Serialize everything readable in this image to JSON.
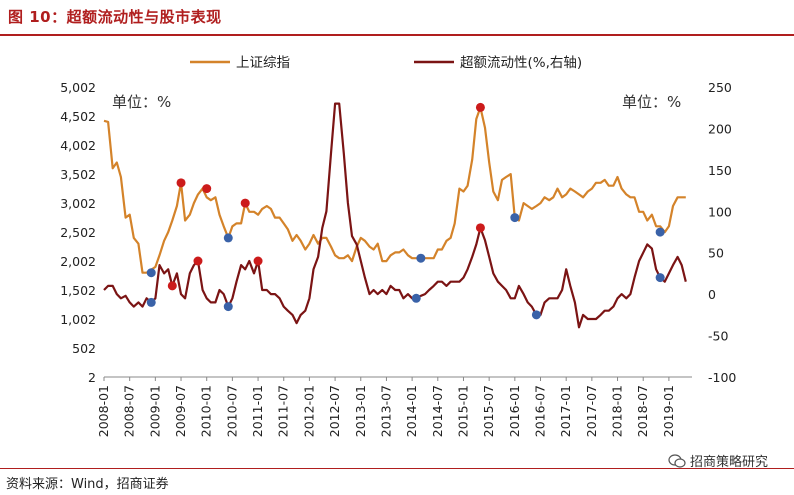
{
  "figure": {
    "title": "图 10：超额流动性与股市表现",
    "source": "资料来源：Wind，招商证券",
    "watermark": "招商策略研究"
  },
  "chart_data": {
    "type": "line",
    "legend": [
      "上证综指",
      "超额流动性(%,右轴)"
    ],
    "left_unit": "单位：%",
    "right_unit": "单位：%",
    "left_axis": {
      "ticks": [
        "5,002",
        "4,502",
        "4,002",
        "3,502",
        "3,002",
        "2,502",
        "2,002",
        "1,502",
        "1,002",
        "502",
        "2"
      ],
      "ylim": [
        2,
        5002
      ]
    },
    "right_axis": {
      "ticks": [
        "250",
        "200",
        "150",
        "100",
        "50",
        "0",
        "-50",
        "-100"
      ],
      "ylim": [
        -100,
        250
      ]
    },
    "x_ticks": [
      "2008-01",
      "2008-07",
      "2009-01",
      "2009-07",
      "2010-01",
      "2010-07",
      "2011-01",
      "2011-07",
      "2012-01",
      "2012-07",
      "2013-01",
      "2013-07",
      "2014-01",
      "2014-07",
      "2015-01",
      "2015-07",
      "2016-01",
      "2016-07",
      "2017-01",
      "2017-07",
      "2018-01",
      "2018-07",
      "2019-01"
    ],
    "series": [
      {
        "name": "上证综指",
        "color": "#d4832a",
        "axis": "left",
        "values": [
          [
            2008.0,
            4420
          ],
          [
            2008.08,
            4400
          ],
          [
            2008.17,
            3600
          ],
          [
            2008.25,
            3700
          ],
          [
            2008.33,
            3450
          ],
          [
            2008.42,
            2750
          ],
          [
            2008.5,
            2800
          ],
          [
            2008.58,
            2400
          ],
          [
            2008.67,
            2300
          ],
          [
            2008.75,
            1800
          ],
          [
            2008.83,
            1800
          ],
          [
            2008.92,
            1850
          ],
          [
            2009.0,
            1900
          ],
          [
            2009.08,
            2100
          ],
          [
            2009.17,
            2350
          ],
          [
            2009.25,
            2500
          ],
          [
            2009.33,
            2700
          ],
          [
            2009.42,
            2950
          ],
          [
            2009.5,
            3350
          ],
          [
            2009.58,
            2700
          ],
          [
            2009.67,
            2800
          ],
          [
            2009.75,
            3000
          ],
          [
            2009.83,
            3150
          ],
          [
            2009.92,
            3250
          ],
          [
            2010.0,
            3100
          ],
          [
            2010.08,
            3050
          ],
          [
            2010.17,
            3100
          ],
          [
            2010.25,
            2800
          ],
          [
            2010.33,
            2600
          ],
          [
            2010.42,
            2400
          ],
          [
            2010.5,
            2600
          ],
          [
            2010.58,
            2650
          ],
          [
            2010.67,
            2650
          ],
          [
            2010.75,
            3000
          ],
          [
            2010.83,
            2850
          ],
          [
            2010.92,
            2850
          ],
          [
            2011.0,
            2800
          ],
          [
            2011.08,
            2900
          ],
          [
            2011.17,
            2950
          ],
          [
            2011.25,
            2900
          ],
          [
            2011.33,
            2750
          ],
          [
            2011.42,
            2750
          ],
          [
            2011.5,
            2650
          ],
          [
            2011.58,
            2550
          ],
          [
            2011.67,
            2350
          ],
          [
            2011.75,
            2450
          ],
          [
            2011.83,
            2350
          ],
          [
            2011.92,
            2200
          ],
          [
            2012.0,
            2300
          ],
          [
            2012.08,
            2450
          ],
          [
            2012.17,
            2300
          ],
          [
            2012.25,
            2400
          ],
          [
            2012.33,
            2400
          ],
          [
            2012.42,
            2250
          ],
          [
            2012.5,
            2100
          ],
          [
            2012.58,
            2050
          ],
          [
            2012.67,
            2050
          ],
          [
            2012.75,
            2100
          ],
          [
            2012.83,
            2000
          ],
          [
            2012.92,
            2250
          ],
          [
            2013.0,
            2400
          ],
          [
            2013.08,
            2350
          ],
          [
            2013.17,
            2250
          ],
          [
            2013.25,
            2200
          ],
          [
            2013.33,
            2300
          ],
          [
            2013.42,
            2000
          ],
          [
            2013.5,
            2000
          ],
          [
            2013.58,
            2100
          ],
          [
            2013.67,
            2150
          ],
          [
            2013.75,
            2150
          ],
          [
            2013.83,
            2200
          ],
          [
            2013.92,
            2100
          ],
          [
            2014.0,
            2050
          ],
          [
            2014.08,
            2050
          ],
          [
            2014.17,
            2050
          ],
          [
            2014.25,
            2050
          ],
          [
            2014.33,
            2050
          ],
          [
            2014.42,
            2050
          ],
          [
            2014.5,
            2200
          ],
          [
            2014.58,
            2200
          ],
          [
            2014.67,
            2350
          ],
          [
            2014.75,
            2400
          ],
          [
            2014.83,
            2650
          ],
          [
            2014.92,
            3250
          ],
          [
            2015.0,
            3200
          ],
          [
            2015.08,
            3300
          ],
          [
            2015.17,
            3750
          ],
          [
            2015.25,
            4450
          ],
          [
            2015.33,
            4650
          ],
          [
            2015.42,
            4300
          ],
          [
            2015.5,
            3700
          ],
          [
            2015.58,
            3200
          ],
          [
            2015.67,
            3050
          ],
          [
            2015.75,
            3400
          ],
          [
            2015.83,
            3450
          ],
          [
            2015.92,
            3500
          ],
          [
            2016.0,
            2750
          ],
          [
            2016.08,
            2700
          ],
          [
            2016.17,
            3000
          ],
          [
            2016.25,
            2950
          ],
          [
            2016.33,
            2900
          ],
          [
            2016.42,
            2950
          ],
          [
            2016.5,
            3000
          ],
          [
            2016.58,
            3100
          ],
          [
            2016.67,
            3050
          ],
          [
            2016.75,
            3100
          ],
          [
            2016.83,
            3250
          ],
          [
            2016.92,
            3100
          ],
          [
            2017.0,
            3150
          ],
          [
            2017.08,
            3250
          ],
          [
            2017.17,
            3200
          ],
          [
            2017.25,
            3150
          ],
          [
            2017.33,
            3100
          ],
          [
            2017.42,
            3200
          ],
          [
            2017.5,
            3250
          ],
          [
            2017.58,
            3350
          ],
          [
            2017.67,
            3350
          ],
          [
            2017.75,
            3400
          ],
          [
            2017.83,
            3300
          ],
          [
            2017.92,
            3300
          ],
          [
            2018.0,
            3450
          ],
          [
            2018.08,
            3250
          ],
          [
            2018.17,
            3150
          ],
          [
            2018.25,
            3100
          ],
          [
            2018.33,
            3100
          ],
          [
            2018.42,
            2850
          ],
          [
            2018.5,
            2850
          ],
          [
            2018.58,
            2700
          ],
          [
            2018.67,
            2800
          ],
          [
            2018.75,
            2600
          ],
          [
            2018.83,
            2600
          ],
          [
            2018.92,
            2500
          ],
          [
            2019.0,
            2600
          ],
          [
            2019.08,
            2950
          ],
          [
            2019.17,
            3100
          ],
          [
            2019.25,
            3100
          ],
          [
            2019.33,
            3100
          ]
        ],
        "markers": [
          {
            "x": 2008.92,
            "y": 1800,
            "color": "#3a62a8"
          },
          {
            "x": 2009.5,
            "y": 3350,
            "color": "#cc1b1b"
          },
          {
            "x": 2010.0,
            "y": 3250,
            "color": "#cc1b1b"
          },
          {
            "x": 2010.42,
            "y": 2400,
            "color": "#3a62a8"
          },
          {
            "x": 2010.75,
            "y": 3000,
            "color": "#cc1b1b"
          },
          {
            "x": 2014.17,
            "y": 2050,
            "color": "#3a62a8"
          },
          {
            "x": 2015.33,
            "y": 4650,
            "color": "#cc1b1b"
          },
          {
            "x": 2016.0,
            "y": 2750,
            "color": "#3a62a8"
          },
          {
            "x": 2018.83,
            "y": 2500,
            "color": "#3a62a8"
          }
        ]
      },
      {
        "name": "超额流动性(%,右轴)",
        "color": "#7b1414",
        "axis": "right",
        "values": [
          [
            2008.0,
            5
          ],
          [
            2008.08,
            10
          ],
          [
            2008.17,
            10
          ],
          [
            2008.25,
            0
          ],
          [
            2008.33,
            -5
          ],
          [
            2008.42,
            -2
          ],
          [
            2008.5,
            -10
          ],
          [
            2008.58,
            -15
          ],
          [
            2008.67,
            -10
          ],
          [
            2008.75,
            -15
          ],
          [
            2008.83,
            -5
          ],
          [
            2008.92,
            -10
          ],
          [
            2009.0,
            -5
          ],
          [
            2009.08,
            35
          ],
          [
            2009.17,
            25
          ],
          [
            2009.25,
            30
          ],
          [
            2009.33,
            10
          ],
          [
            2009.42,
            25
          ],
          [
            2009.5,
            0
          ],
          [
            2009.58,
            -5
          ],
          [
            2009.67,
            25
          ],
          [
            2009.75,
            35
          ],
          [
            2009.83,
            40
          ],
          [
            2009.92,
            5
          ],
          [
            2010.0,
            -5
          ],
          [
            2010.08,
            -10
          ],
          [
            2010.17,
            -10
          ],
          [
            2010.25,
            5
          ],
          [
            2010.33,
            0
          ],
          [
            2010.42,
            -15
          ],
          [
            2010.5,
            -5
          ],
          [
            2010.58,
            15
          ],
          [
            2010.67,
            35
          ],
          [
            2010.75,
            30
          ],
          [
            2010.83,
            40
          ],
          [
            2010.92,
            25
          ],
          [
            2011.0,
            40
          ],
          [
            2011.08,
            5
          ],
          [
            2011.17,
            5
          ],
          [
            2011.25,
            0
          ],
          [
            2011.33,
            0
          ],
          [
            2011.42,
            -5
          ],
          [
            2011.5,
            -15
          ],
          [
            2011.58,
            -20
          ],
          [
            2011.67,
            -25
          ],
          [
            2011.75,
            -35
          ],
          [
            2011.83,
            -25
          ],
          [
            2011.92,
            -20
          ],
          [
            2012.0,
            -5
          ],
          [
            2012.08,
            30
          ],
          [
            2012.17,
            45
          ],
          [
            2012.25,
            80
          ],
          [
            2012.33,
            100
          ],
          [
            2012.42,
            170
          ],
          [
            2012.5,
            230
          ],
          [
            2012.58,
            230
          ],
          [
            2012.67,
            170
          ],
          [
            2012.75,
            110
          ],
          [
            2012.83,
            70
          ],
          [
            2012.92,
            60
          ],
          [
            2013.0,
            40
          ],
          [
            2013.08,
            20
          ],
          [
            2013.17,
            0
          ],
          [
            2013.25,
            5
          ],
          [
            2013.33,
            0
          ],
          [
            2013.42,
            5
          ],
          [
            2013.5,
            0
          ],
          [
            2013.58,
            10
          ],
          [
            2013.67,
            5
          ],
          [
            2013.75,
            5
          ],
          [
            2013.83,
            -5
          ],
          [
            2013.92,
            0
          ],
          [
            2014.0,
            -5
          ],
          [
            2014.08,
            -5
          ],
          [
            2014.17,
            -2
          ],
          [
            2014.25,
            0
          ],
          [
            2014.33,
            5
          ],
          [
            2014.42,
            10
          ],
          [
            2014.5,
            15
          ],
          [
            2014.58,
            15
          ],
          [
            2014.67,
            10
          ],
          [
            2014.75,
            15
          ],
          [
            2014.83,
            15
          ],
          [
            2014.92,
            15
          ],
          [
            2015.0,
            20
          ],
          [
            2015.08,
            30
          ],
          [
            2015.17,
            45
          ],
          [
            2015.25,
            60
          ],
          [
            2015.33,
            80
          ],
          [
            2015.42,
            65
          ],
          [
            2015.5,
            45
          ],
          [
            2015.58,
            25
          ],
          [
            2015.67,
            15
          ],
          [
            2015.75,
            10
          ],
          [
            2015.83,
            5
          ],
          [
            2015.92,
            -5
          ],
          [
            2016.0,
            -5
          ],
          [
            2016.08,
            10
          ],
          [
            2016.17,
            0
          ],
          [
            2016.25,
            -10
          ],
          [
            2016.33,
            -15
          ],
          [
            2016.42,
            -25
          ],
          [
            2016.5,
            -25
          ],
          [
            2016.58,
            -10
          ],
          [
            2016.67,
            -5
          ],
          [
            2016.75,
            -5
          ],
          [
            2016.83,
            -5
          ],
          [
            2016.92,
            5
          ],
          [
            2017.0,
            30
          ],
          [
            2017.08,
            10
          ],
          [
            2017.17,
            -10
          ],
          [
            2017.25,
            -40
          ],
          [
            2017.33,
            -25
          ],
          [
            2017.42,
            -30
          ],
          [
            2017.5,
            -30
          ],
          [
            2017.58,
            -30
          ],
          [
            2017.67,
            -25
          ],
          [
            2017.75,
            -20
          ],
          [
            2017.83,
            -20
          ],
          [
            2017.92,
            -15
          ],
          [
            2018.0,
            -5
          ],
          [
            2018.08,
            0
          ],
          [
            2018.17,
            -5
          ],
          [
            2018.25,
            0
          ],
          [
            2018.33,
            20
          ],
          [
            2018.42,
            40
          ],
          [
            2018.5,
            50
          ],
          [
            2018.58,
            60
          ],
          [
            2018.67,
            55
          ],
          [
            2018.75,
            30
          ],
          [
            2018.83,
            20
          ],
          [
            2018.92,
            15
          ],
          [
            2019.0,
            25
          ],
          [
            2019.08,
            35
          ],
          [
            2019.17,
            45
          ],
          [
            2019.25,
            35
          ],
          [
            2019.33,
            15
          ]
        ],
        "markers": []
      }
    ]
  }
}
